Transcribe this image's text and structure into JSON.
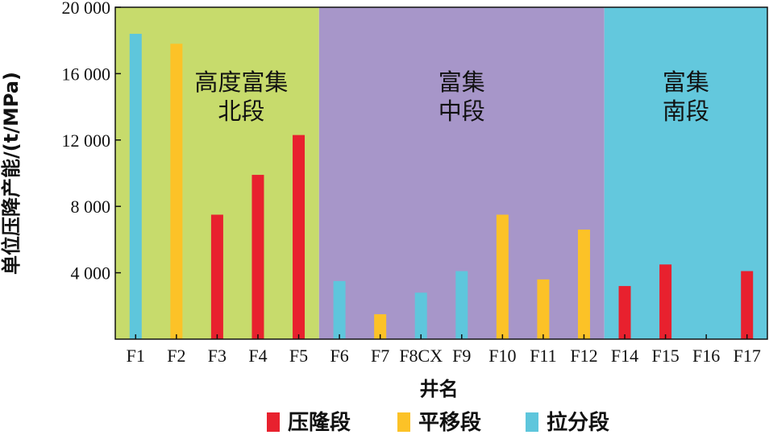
{
  "chart_data": {
    "type": "bar",
    "xlabel": "井名",
    "ylabel": "单位压降产能/(t/MPa)",
    "ylim": [
      0,
      20000
    ],
    "yticks": [
      4000,
      8000,
      12000,
      16000,
      20000
    ],
    "ytick_labels": [
      "4 000",
      "8 000",
      "12 000",
      "16 000",
      "20 000"
    ],
    "categories": [
      "F1",
      "F2",
      "F3",
      "F4",
      "F5",
      "F6",
      "F7",
      "F8CX",
      "F9",
      "F10",
      "F11",
      "F12",
      "F14",
      "F15",
      "F16",
      "F17"
    ],
    "values": [
      18400,
      17800,
      7500,
      9900,
      12300,
      3500,
      1500,
      2800,
      4100,
      7500,
      3600,
      6600,
      3200,
      4500,
      0,
      4100
    ],
    "bar_types": [
      "拉分段",
      "平移段",
      "压隆段",
      "压隆段",
      "压隆段",
      "拉分段",
      "平移段",
      "拉分段",
      "拉分段",
      "平移段",
      "平移段",
      "平移段",
      "压隆段",
      "压隆段",
      "压隆段",
      "压隆段"
    ],
    "legend": [
      {
        "name": "压隆段",
        "color": "#e8212e"
      },
      {
        "name": "平移段",
        "color": "#fcc227"
      },
      {
        "name": "拉分段",
        "color": "#5ec6dc"
      }
    ],
    "legend_position": "bottom",
    "regions": [
      {
        "label_lines": [
          "高度富集",
          "北段"
        ],
        "from_index": 0,
        "to_index": 4,
        "color": "#c7db6c"
      },
      {
        "label_lines": [
          "富集",
          "中段"
        ],
        "from_index": 5,
        "to_index": 11,
        "color": "#a796c9"
      },
      {
        "label_lines": [
          "富集",
          "南段"
        ],
        "from_index": 12,
        "to_index": 15,
        "color": "#63c8dd"
      }
    ],
    "grid": false
  }
}
